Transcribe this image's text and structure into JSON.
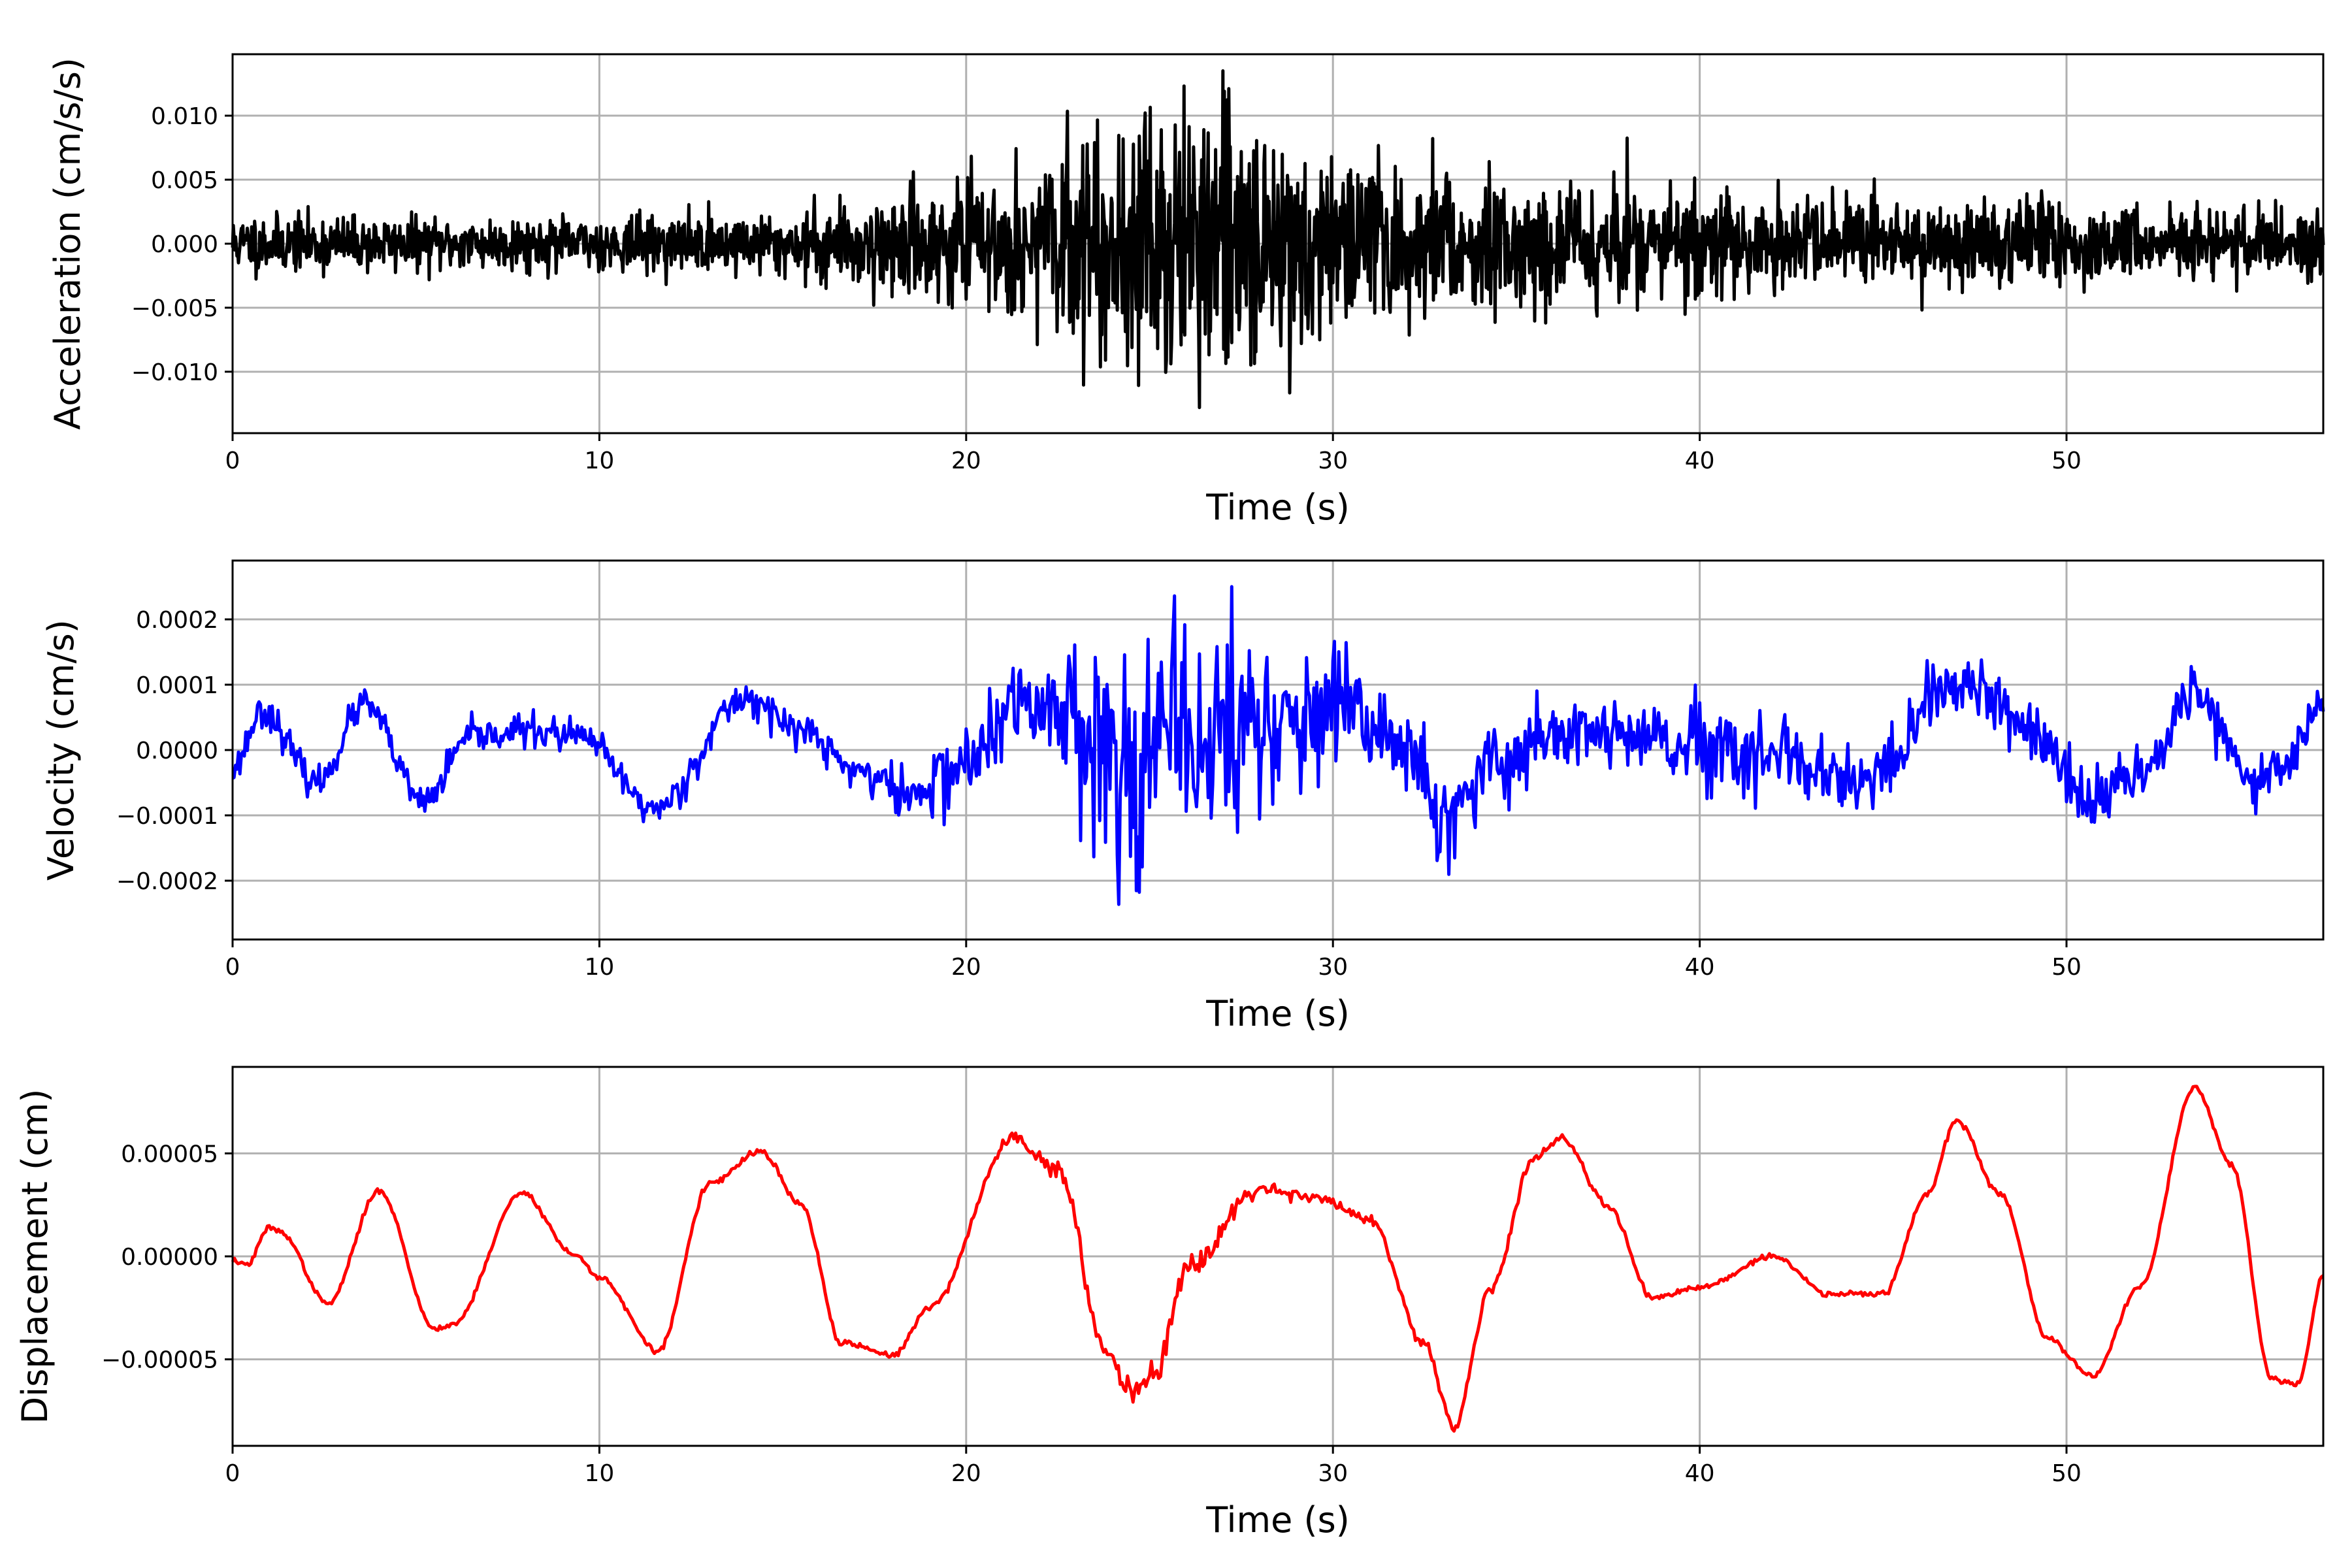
{
  "chart_data": [
    {
      "type": "line",
      "xlabel": "Time (s)",
      "ylabel": "Acceleration (cm/s/s)",
      "xlim": [
        0,
        57
      ],
      "ylim": [
        -0.0148,
        0.0148
      ],
      "xticks": [
        0,
        10,
        20,
        30,
        40,
        50
      ],
      "yticks": [
        -0.01,
        -0.005,
        0.0,
        0.005,
        0.01
      ],
      "ytick_labels": [
        "−0.010",
        "−0.005",
        "0.000",
        "0.005",
        "0.010"
      ],
      "grid": true,
      "color": "#000000",
      "series": [
        {
          "signal": "noise",
          "seed": 11,
          "sample_dt": 0.02,
          "envelope_t": [
            0,
            5,
            10,
            15,
            17,
            20,
            22,
            24,
            25.5,
            27,
            29,
            31,
            33,
            35,
            38,
            42,
            47,
            52,
            57
          ],
          "envelope_a": [
            0.0011,
            0.001,
            0.001,
            0.0012,
            0.0018,
            0.0022,
            0.0028,
            0.0045,
            0.0055,
            0.0052,
            0.0038,
            0.003,
            0.0027,
            0.0025,
            0.0022,
            0.0018,
            0.0016,
            0.0014,
            0.0012
          ],
          "clip": 0.0135
        }
      ]
    },
    {
      "type": "line",
      "xlabel": "Time (s)",
      "ylabel": "Velocity (cm/s)",
      "xlim": [
        0,
        57
      ],
      "ylim": [
        -0.00029,
        0.00029
      ],
      "xticks": [
        0,
        10,
        20,
        30,
        40,
        50
      ],
      "yticks": [
        -0.0002,
        -0.0001,
        0.0,
        0.0001,
        0.0002
      ],
      "ytick_labels": [
        "−0.0002",
        "−0.0001",
        "0.0000",
        "0.0001",
        "0.0002"
      ],
      "grid": true,
      "color": "#0000ff",
      "series": [
        {
          "signal": "trend+noise",
          "seed": 23,
          "sample_dt": 0.04,
          "trend_t": [
            0,
            0.8,
            2.3,
            3.6,
            5.2,
            6.5,
            8,
            9.5,
            11.5,
            14,
            15.5,
            17,
            18.5,
            20,
            21.5,
            23,
            24,
            25.5,
            27,
            28.5,
            30.5,
            32,
            33,
            34.5,
            36,
            38,
            40,
            42,
            44,
            45,
            46.5,
            47.5,
            49,
            50.5,
            52,
            53.5,
            55,
            56,
            57
          ],
          "trend_v": [
            -3e-05,
            6e-05,
            -5e-05,
            7e-05,
            -8e-05,
            2e-05,
            3e-05,
            2e-05,
            -9e-05,
            8e-05,
            3e-05,
            -3e-05,
            -7e-05,
            -2e-05,
            7e-05,
            6e-05,
            -2e-05,
            0.0,
            3e-05,
            4e-05,
            5e-05,
            1e-05,
            -0.00012,
            -2e-05,
            3e-05,
            2e-05,
            0.0,
            -2e-05,
            -5e-05,
            -4e-05,
            9e-05,
            0.0001,
            3e-05,
            -8e-05,
            -3e-05,
            9e-05,
            -4e-05,
            -2e-05,
            7e-05
          ],
          "envelope_t": [
            0,
            15,
            18,
            20,
            22,
            24,
            25.5,
            27,
            29,
            31,
            34,
            38,
            45,
            57
          ],
          "envelope_a": [
            1.2e-05,
            1.3e-05,
            2e-05,
            3e-05,
            4e-05,
            8.5e-05,
            0.0001,
            8.5e-05,
            5.5e-05,
            4.5e-05,
            3.5e-05,
            3.2e-05,
            2.8e-05,
            1.8e-05
          ],
          "clip": 0.00025
        }
      ]
    },
    {
      "type": "line",
      "xlabel": "Time (s)",
      "ylabel": "Displacement (cm)",
      "xlim": [
        0,
        57
      ],
      "ylim": [
        -9.2e-05,
        9.2e-05
      ],
      "xticks": [
        0,
        10,
        20,
        30,
        40,
        50
      ],
      "yticks": [
        -5e-05,
        0.0,
        5e-05
      ],
      "ytick_labels": [
        "−0.00005",
        "0.00000",
        "0.00005"
      ],
      "grid": true,
      "color": "#ff0000",
      "series": [
        {
          "signal": "trend+noise",
          "seed": 37,
          "sample_dt": 0.05,
          "trend_t": [
            0,
            0.4,
            1.0,
            1.3,
            2.6,
            4.0,
            5.5,
            6.0,
            7.9,
            9.3,
            10,
            11.6,
            13,
            14.4,
            15.5,
            16.6,
            18.0,
            19.0,
            21.3,
            22.5,
            23.8,
            24.5,
            25.2,
            26,
            28,
            29.5,
            31,
            32.5,
            33.3,
            34.3,
            35.5,
            36.2,
            37.5,
            38.7,
            40,
            42,
            43.5,
            45,
            46.2,
            47.0,
            48.2,
            49.5,
            50.7,
            52,
            53.5,
            54.5,
            55.6,
            56.3,
            57
          ],
          "trend_v": [
            -2e-06,
            -4e-06,
            1.4e-05,
            1.2e-05,
            -2.3e-05,
            3.2e-05,
            -3.5e-05,
            -3.3e-05,
            3.1e-05,
            1e-06,
            -1e-05,
            -4.6e-05,
            3.5e-05,
            5.1e-05,
            2.5e-05,
            -4.2e-05,
            -4.8e-05,
            -2.5e-05,
            5.8e-05,
            4.2e-05,
            -4.5e-05,
            -6.5e-05,
            -5.5e-05,
            -5e-06,
            3.3e-05,
            2.9e-05,
            1.8e-05,
            -4.3e-05,
            -8.3e-05,
            -1.5e-05,
            4.8e-05,
            5.8e-05,
            2.5e-05,
            -2e-05,
            -1.5e-05,
            0.0,
            -1.8e-05,
            -1.8e-05,
            3e-05,
            6.6e-05,
            3e-05,
            -4e-05,
            -5.8e-05,
            -1.5e-05,
            8.2e-05,
            4.5e-05,
            -6e-05,
            -6.2e-05,
            -1e-05
          ],
          "envelope_t": [
            0,
            20,
            23,
            26,
            30,
            40,
            57
          ],
          "envelope_a": [
            6e-07,
            8e-07,
            2.5e-06,
            3e-06,
            1.2e-06,
            8e-07,
            6e-07
          ],
          "clip": 9e-05
        }
      ]
    }
  ]
}
